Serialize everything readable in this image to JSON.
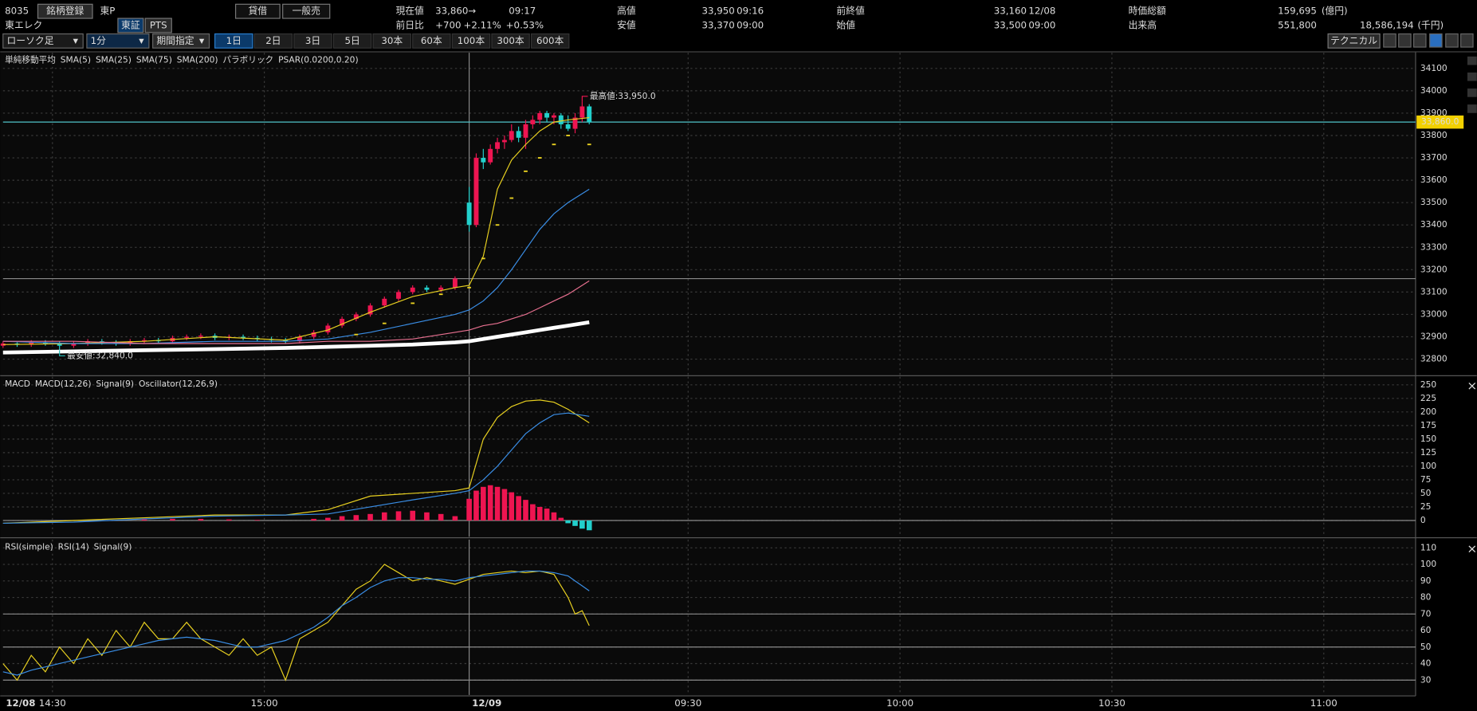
{
  "header": {
    "code": "8035",
    "register": "銘柄登録",
    "market": "東P",
    "lending": "貸借",
    "general": "一般売",
    "name": "東エレク",
    "tse": "東証",
    "pts": "PTS",
    "quote": {
      "current_label": "現在値",
      "current": "33,860",
      "arrow": "→",
      "time": "09:17",
      "change_label": "前日比",
      "change": "+700",
      "change_pct": "+2.11%",
      "change_pct2": "+0.53%",
      "high_label": "高値",
      "high": "33,950",
      "high_time": "09:16",
      "low_label": "安値",
      "low": "33,370",
      "low_time": "09:00",
      "prev_label": "前終値",
      "prev": "33,160",
      "prev_date": "12/08",
      "open_label": "始値",
      "open": "33,500",
      "open_time": "09:00",
      "cap_label": "時価総額",
      "cap": "159,695",
      "cap_unit": "(億円)",
      "volume_label": "出来高",
      "volume": "551,800",
      "turnover": "18,586,194",
      "turnover_unit": "(千円)"
    }
  },
  "toolbar": {
    "chart_type": "ローソク足",
    "interval": "1分",
    "period": "期間指定",
    "ranges": [
      "1日",
      "2日",
      "3日",
      "5日",
      "30本",
      "60本",
      "100本",
      "300本",
      "600本"
    ],
    "technical": "テクニカル"
  },
  "chart_data": [
    {
      "type": "candlestick",
      "title": "単純移動平均",
      "xlim": [
        0,
        200
      ],
      "ylim": [
        32730,
        34170
      ],
      "yticks": [
        32800,
        32900,
        33000,
        33100,
        33200,
        33300,
        33400,
        33500,
        33600,
        33700,
        33800,
        33900,
        34000,
        34100
      ],
      "grid": true,
      "up_color": "#ee1551",
      "down_color": "#22d0cc",
      "candles": {
        "x": [
          0,
          2,
          4,
          6,
          8,
          10,
          12,
          14,
          16,
          18,
          20,
          22,
          24,
          26,
          28,
          30,
          32,
          34,
          36,
          38,
          40,
          42,
          44,
          46,
          48,
          50,
          52,
          54,
          56,
          58,
          60,
          62,
          64,
          66,
          67,
          68,
          69,
          70,
          71,
          72,
          73,
          74,
          75,
          76,
          77,
          78,
          79,
          80,
          81,
          82,
          83
        ],
        "open": [
          32860,
          32870,
          32865,
          32875,
          32870,
          32860,
          32870,
          32880,
          32875,
          32870,
          32880,
          32885,
          32880,
          32895,
          32900,
          32905,
          32895,
          32900,
          32895,
          32890,
          32885,
          32880,
          32900,
          32920,
          32950,
          32980,
          33000,
          33040,
          33070,
          33100,
          33120,
          33110,
          33120,
          33500,
          33400,
          33700,
          33680,
          33740,
          33770,
          33780,
          33820,
          33790,
          33850,
          33870,
          33900,
          33880,
          33890,
          33850,
          33830,
          33880,
          33930
        ],
        "high": [
          32880,
          32875,
          32885,
          32885,
          32880,
          32880,
          32890,
          32890,
          32885,
          32890,
          32895,
          32895,
          32905,
          32910,
          32915,
          32915,
          32910,
          32910,
          32905,
          32900,
          32895,
          32910,
          32930,
          32960,
          32990,
          33010,
          33050,
          33080,
          33110,
          33130,
          33130,
          33130,
          33170,
          33570,
          33720,
          33740,
          33760,
          33790,
          33800,
          33850,
          33840,
          33870,
          33890,
          33910,
          33910,
          33900,
          33900,
          33890,
          33900,
          33950,
          33940
        ],
        "low": [
          32850,
          32855,
          32855,
          32860,
          32840,
          32850,
          32860,
          32865,
          32860,
          32860,
          32870,
          32870,
          32870,
          32885,
          32890,
          32885,
          32885,
          32885,
          32880,
          32875,
          32870,
          32870,
          32890,
          32910,
          32940,
          32970,
          32990,
          33030,
          33060,
          33090,
          33100,
          33100,
          33110,
          33370,
          33390,
          33650,
          33670,
          33720,
          33740,
          33770,
          33770,
          33740,
          33830,
          33850,
          33860,
          33850,
          33830,
          33820,
          33810,
          33860,
          33850
        ],
        "close": [
          32870,
          32865,
          32875,
          32870,
          32860,
          32870,
          32880,
          32875,
          32870,
          32880,
          32885,
          32880,
          32895,
          32900,
          32905,
          32895,
          32900,
          32895,
          32890,
          32885,
          32880,
          32900,
          32920,
          32950,
          32980,
          33000,
          33040,
          33070,
          33100,
          33120,
          33110,
          33120,
          33160,
          33400,
          33700,
          33680,
          33740,
          33770,
          33780,
          33820,
          33790,
          33850,
          33870,
          33900,
          33880,
          33890,
          33850,
          33830,
          33880,
          33930,
          33860
        ]
      },
      "series": [
        {
          "name": "SMA(5)",
          "color": "#e8d020",
          "x": [
            0,
            10,
            20,
            30,
            40,
            46,
            52,
            58,
            64,
            66,
            68,
            70,
            72,
            74,
            76,
            78,
            80,
            83
          ],
          "values": [
            32865,
            32870,
            32880,
            32900,
            32885,
            32930,
            33010,
            33080,
            33120,
            33130,
            33260,
            33560,
            33690,
            33760,
            33820,
            33860,
            33870,
            33880
          ]
        },
        {
          "name": "SMA(25)",
          "color": "#3a8ee6",
          "x": [
            0,
            10,
            20,
            30,
            40,
            46,
            52,
            58,
            64,
            66,
            68,
            70,
            72,
            74,
            76,
            78,
            80,
            83
          ],
          "values": [
            32880,
            32870,
            32870,
            32880,
            32880,
            32890,
            32920,
            32960,
            33000,
            33020,
            33060,
            33120,
            33200,
            33290,
            33380,
            33450,
            33500,
            33560
          ]
        },
        {
          "name": "SMA(75)",
          "color": "#e87090",
          "x": [
            0,
            10,
            20,
            30,
            40,
            46,
            52,
            58,
            64,
            66,
            68,
            70,
            72,
            74,
            76,
            78,
            80,
            83
          ],
          "values": [
            32880,
            32880,
            32870,
            32870,
            32870,
            32880,
            32880,
            32890,
            32920,
            32930,
            32950,
            32960,
            32980,
            33000,
            33030,
            33060,
            33090,
            33150
          ]
        },
        {
          "name": "SMA(200)",
          "color": "#ffffff",
          "width": 4,
          "x": [
            0,
            10,
            20,
            30,
            40,
            46,
            52,
            58,
            64,
            66,
            68,
            70,
            72,
            74,
            76,
            78,
            80,
            83
          ],
          "values": [
            32830,
            32835,
            32840,
            32845,
            32850,
            32855,
            32860,
            32865,
            32875,
            32880,
            32890,
            32900,
            32910,
            32920,
            32930,
            32940,
            32950,
            32965
          ]
        },
        {
          "name": "PSAR(0.0200,0.20)",
          "group_label": "パラボリック",
          "style": "dots",
          "color": "#e8d020",
          "x": [
            50,
            54,
            58,
            62,
            66,
            68,
            70,
            72,
            74,
            76,
            78,
            80,
            83
          ],
          "values": [
            32910,
            32960,
            33050,
            33090,
            33120,
            33250,
            33400,
            33520,
            33640,
            33700,
            33760,
            33800,
            33760
          ]
        }
      ],
      "hlines": [
        {
          "value": 33860,
          "label": "33,860.0",
          "color": "#4fc3c8"
        },
        {
          "value": 33160,
          "color": "#8a8a8a"
        }
      ],
      "annotations": [
        {
          "text": "最高値:33,950.0",
          "x": 82,
          "y": 33950,
          "color": "#ee1551"
        },
        {
          "text": "最安値:32,840.0",
          "x": 8,
          "y": 32840,
          "color": "#22b8b4"
        }
      ]
    },
    {
      "type": "line",
      "title": "MACD",
      "xlim": [
        0,
        200
      ],
      "ylim": [
        -30,
        265
      ],
      "yticks": [
        0,
        25,
        50,
        75,
        100,
        125,
        150,
        175,
        200,
        225,
        250
      ],
      "grid": true,
      "series": [
        {
          "name": "MACD(12,26)",
          "color": "#e8d020",
          "x": [
            0,
            10,
            20,
            30,
            40,
            46,
            52,
            58,
            64,
            66,
            68,
            70,
            72,
            74,
            76,
            78,
            80,
            83
          ],
          "values": [
            -5,
            0,
            5,
            10,
            10,
            20,
            45,
            50,
            55,
            60,
            150,
            190,
            210,
            220,
            222,
            218,
            205,
            180
          ]
        },
        {
          "name": "Signal(9)",
          "color": "#3a8ee6",
          "x": [
            0,
            10,
            20,
            30,
            40,
            46,
            52,
            58,
            64,
            66,
            68,
            70,
            72,
            74,
            76,
            78,
            80,
            83
          ],
          "values": [
            -5,
            -3,
            3,
            8,
            10,
            12,
            25,
            38,
            50,
            55,
            75,
            100,
            130,
            160,
            180,
            195,
            198,
            192
          ]
        },
        {
          "name": "Oscillator(12,26,9)",
          "style": "bar",
          "color": "#ee1551",
          "negative_color": "#22d0cc",
          "x": [
            20,
            24,
            28,
            32,
            36,
            40,
            44,
            46,
            48,
            50,
            52,
            54,
            56,
            58,
            60,
            62,
            64,
            66,
            67,
            68,
            69,
            70,
            71,
            72,
            73,
            74,
            75,
            76,
            77,
            78,
            79,
            80,
            81,
            82,
            83
          ],
          "values": [
            2,
            3,
            3,
            2,
            1,
            0,
            3,
            5,
            8,
            10,
            12,
            15,
            17,
            18,
            15,
            12,
            8,
            40,
            55,
            62,
            65,
            62,
            58,
            52,
            45,
            38,
            30,
            25,
            22,
            15,
            5,
            -5,
            -10,
            -15,
            -18
          ]
        }
      ],
      "hlines": [
        {
          "value": 0,
          "color": "#8a8a8a"
        }
      ]
    },
    {
      "type": "line",
      "title": "RSI(simple)",
      "xlim": [
        0,
        200
      ],
      "ylim": [
        21,
        115
      ],
      "yticks": [
        30,
        40,
        50,
        60,
        70,
        80,
        90,
        100,
        110
      ],
      "grid": true,
      "xticks": [
        {
          "value": 0,
          "label": "12/08"
        },
        {
          "value": 7,
          "label": "14:30"
        },
        {
          "value": 37,
          "label": "15:00"
        },
        {
          "value": 66,
          "label": "12/09"
        },
        {
          "value": 97,
          "label": "09:30"
        },
        {
          "value": 127,
          "label": "10:00"
        },
        {
          "value": 157,
          "label": "10:30"
        },
        {
          "value": 187,
          "label": "11:00"
        }
      ],
      "series": [
        {
          "name": "RSI(14)",
          "color": "#e8d020",
          "x": [
            0,
            2,
            4,
            6,
            8,
            10,
            12,
            14,
            16,
            18,
            20,
            22,
            24,
            26,
            28,
            30,
            32,
            34,
            36,
            38,
            40,
            42,
            44,
            46,
            48,
            50,
            52,
            54,
            56,
            58,
            60,
            62,
            64,
            66,
            68,
            70,
            72,
            74,
            76,
            78,
            80,
            81,
            82,
            83
          ],
          "values": [
            40,
            30,
            45,
            35,
            50,
            40,
            55,
            45,
            60,
            50,
            65,
            55,
            55,
            65,
            55,
            50,
            45,
            55,
            45,
            50,
            30,
            55,
            60,
            65,
            75,
            85,
            90,
            100,
            95,
            90,
            92,
            90,
            88,
            91,
            94,
            95,
            96,
            95,
            96,
            94,
            80,
            70,
            72,
            63
          ]
        },
        {
          "name": "Signal(9)",
          "color": "#3a8ee6",
          "x": [
            0,
            2,
            4,
            6,
            8,
            10,
            12,
            14,
            16,
            18,
            20,
            22,
            24,
            26,
            28,
            30,
            32,
            34,
            36,
            38,
            40,
            42,
            44,
            46,
            48,
            50,
            52,
            54,
            56,
            58,
            60,
            62,
            64,
            66,
            68,
            70,
            72,
            74,
            76,
            78,
            80,
            81,
            82,
            83
          ],
          "values": [
            35,
            33,
            36,
            38,
            40,
            42,
            44,
            46,
            48,
            50,
            52,
            54,
            55,
            56,
            55,
            54,
            52,
            50,
            50,
            52,
            54,
            58,
            62,
            68,
            75,
            80,
            86,
            90,
            92,
            92,
            91,
            91,
            90,
            92,
            93,
            94,
            95,
            96,
            96,
            95,
            93,
            90,
            87,
            84
          ]
        }
      ],
      "hlines": [
        {
          "value": 70,
          "color": "#8a8a8a"
        },
        {
          "value": 50,
          "color": "#8a8a8a"
        },
        {
          "value": 30,
          "color": "#8a8a8a"
        }
      ]
    }
  ]
}
